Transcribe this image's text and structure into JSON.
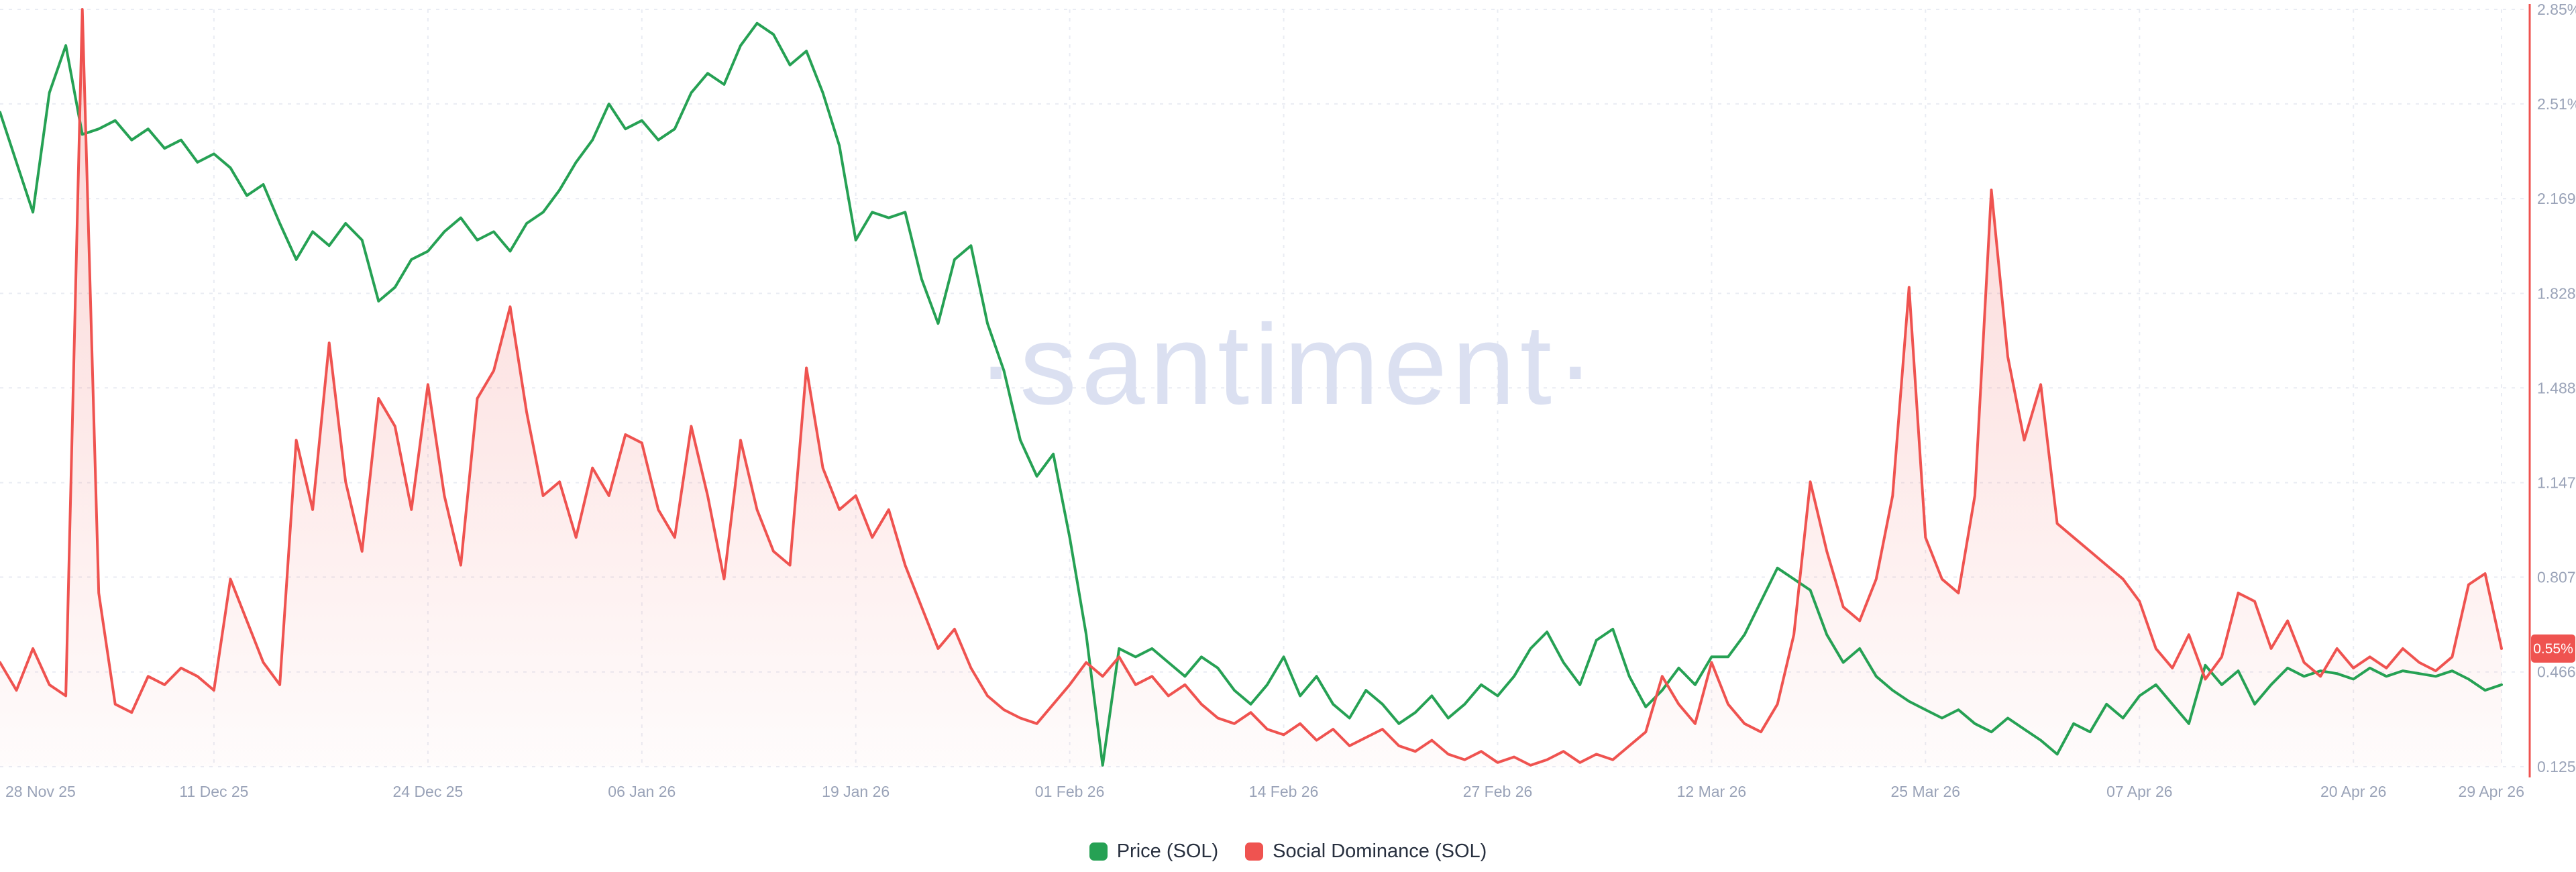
{
  "watermark": {
    "text": "·santiment·"
  },
  "legend": {
    "items": [
      {
        "label": "Price (SOL)",
        "color": "#26a154"
      },
      {
        "label": "Social Dominance (SOL)",
        "color": "#ef5350"
      }
    ]
  },
  "axis": {
    "right_ticks": [
      "2.85%",
      "2.51%",
      "2.169%",
      "1.828%",
      "1.488%",
      "1.147%",
      "0.807%",
      "0.466%",
      "0.125%"
    ],
    "right_tick_values": [
      2.85,
      2.51,
      2.169,
      1.828,
      1.488,
      1.147,
      0.807,
      0.466,
      0.125
    ],
    "x_ticks": [
      "28 Nov 25",
      "11 Dec 25",
      "24 Dec 25",
      "06 Jan 26",
      "19 Jan 26",
      "01 Feb 26",
      "14 Feb 26",
      "27 Feb 26",
      "12 Mar 26",
      "25 Mar 26",
      "07 Apr 26",
      "20 Apr 26",
      "29 Apr 26"
    ],
    "x_tick_days": [
      0,
      13,
      26,
      39,
      52,
      65,
      78,
      91,
      104,
      117,
      130,
      143,
      152
    ],
    "badge": {
      "text": "0.55%",
      "value": 0.55,
      "color": "#ef5350"
    }
  },
  "chart_data": {
    "type": "line",
    "title": "",
    "x_start": "28 Nov 25",
    "x_end": "29 Apr 26",
    "n_points": 153,
    "y_right": {
      "min": 0.125,
      "max": 2.85,
      "unit": "%",
      "axis_color": "#ef5350"
    },
    "grid": true,
    "legend_position": "bottom-center",
    "note": "Price (SOL) axis is hidden; its values below are plot positions expressed on the visible right-axis scale.",
    "series": [
      {
        "name": "Price (SOL)",
        "color": "#26a154",
        "axis": "left-hidden",
        "area_fill": false,
        "values": [
          2.48,
          2.3,
          2.12,
          2.55,
          2.72,
          2.4,
          2.42,
          2.45,
          2.38,
          2.42,
          2.35,
          2.38,
          2.3,
          2.33,
          2.28,
          2.18,
          2.22,
          2.08,
          1.95,
          2.05,
          2.0,
          2.08,
          2.02,
          1.8,
          1.85,
          1.95,
          1.98,
          2.05,
          2.1,
          2.02,
          2.05,
          1.98,
          2.08,
          2.12,
          2.2,
          2.3,
          2.38,
          2.51,
          2.42,
          2.45,
          2.38,
          2.42,
          2.55,
          2.62,
          2.58,
          2.72,
          2.8,
          2.76,
          2.65,
          2.7,
          2.55,
          2.36,
          2.02,
          2.12,
          2.1,
          2.12,
          1.88,
          1.72,
          1.95,
          2.0,
          1.72,
          1.55,
          1.3,
          1.17,
          1.25,
          0.95,
          0.6,
          0.13,
          0.55,
          0.52,
          0.55,
          0.5,
          0.45,
          0.52,
          0.48,
          0.4,
          0.35,
          0.42,
          0.52,
          0.38,
          0.45,
          0.35,
          0.3,
          0.4,
          0.35,
          0.28,
          0.32,
          0.38,
          0.3,
          0.35,
          0.42,
          0.38,
          0.45,
          0.55,
          0.61,
          0.5,
          0.42,
          0.58,
          0.62,
          0.45,
          0.34,
          0.4,
          0.48,
          0.42,
          0.52,
          0.52,
          0.6,
          0.72,
          0.84,
          0.8,
          0.76,
          0.6,
          0.5,
          0.55,
          0.45,
          0.4,
          0.36,
          0.33,
          0.3,
          0.33,
          0.28,
          0.25,
          0.3,
          0.26,
          0.22,
          0.17,
          0.28,
          0.25,
          0.35,
          0.3,
          0.38,
          0.42,
          0.35,
          0.28,
          0.49,
          0.42,
          0.47,
          0.35,
          0.42,
          0.48,
          0.45,
          0.47,
          0.46,
          0.44,
          0.48,
          0.45,
          0.47,
          0.46,
          0.45,
          0.47,
          0.44,
          0.4,
          0.42
        ]
      },
      {
        "name": "Social Dominance (SOL)",
        "color": "#ef5350",
        "axis": "right",
        "area_fill": true,
        "values": [
          0.5,
          0.4,
          0.55,
          0.42,
          0.38,
          2.85,
          0.75,
          0.35,
          0.32,
          0.45,
          0.42,
          0.48,
          0.45,
          0.4,
          0.8,
          0.65,
          0.5,
          0.42,
          1.3,
          1.05,
          1.65,
          1.15,
          0.9,
          1.45,
          1.35,
          1.05,
          1.5,
          1.1,
          0.85,
          1.45,
          1.55,
          1.78,
          1.4,
          1.1,
          1.15,
          0.95,
          1.2,
          1.1,
          1.32,
          1.29,
          1.05,
          0.95,
          1.35,
          1.1,
          0.8,
          1.3,
          1.05,
          0.9,
          0.85,
          1.56,
          1.2,
          1.05,
          1.1,
          0.95,
          1.05,
          0.85,
          0.7,
          0.55,
          0.62,
          0.48,
          0.38,
          0.33,
          0.3,
          0.28,
          0.35,
          0.42,
          0.5,
          0.45,
          0.52,
          0.42,
          0.45,
          0.38,
          0.42,
          0.35,
          0.3,
          0.28,
          0.32,
          0.26,
          0.24,
          0.28,
          0.22,
          0.26,
          0.2,
          0.23,
          0.26,
          0.2,
          0.18,
          0.22,
          0.17,
          0.15,
          0.18,
          0.14,
          0.16,
          0.13,
          0.15,
          0.18,
          0.14,
          0.17,
          0.15,
          0.2,
          0.25,
          0.45,
          0.35,
          0.28,
          0.5,
          0.35,
          0.28,
          0.25,
          0.35,
          0.6,
          1.15,
          0.9,
          0.7,
          0.65,
          0.8,
          1.1,
          1.85,
          0.95,
          0.8,
          0.75,
          1.1,
          2.2,
          1.6,
          1.3,
          1.5,
          1.0,
          0.95,
          0.9,
          0.85,
          0.8,
          0.72,
          0.55,
          0.48,
          0.6,
          0.44,
          0.52,
          0.75,
          0.72,
          0.55,
          0.65,
          0.5,
          0.45,
          0.55,
          0.48,
          0.52,
          0.48,
          0.55,
          0.5,
          0.47,
          0.52,
          0.78,
          0.82,
          0.55
        ]
      }
    ]
  }
}
